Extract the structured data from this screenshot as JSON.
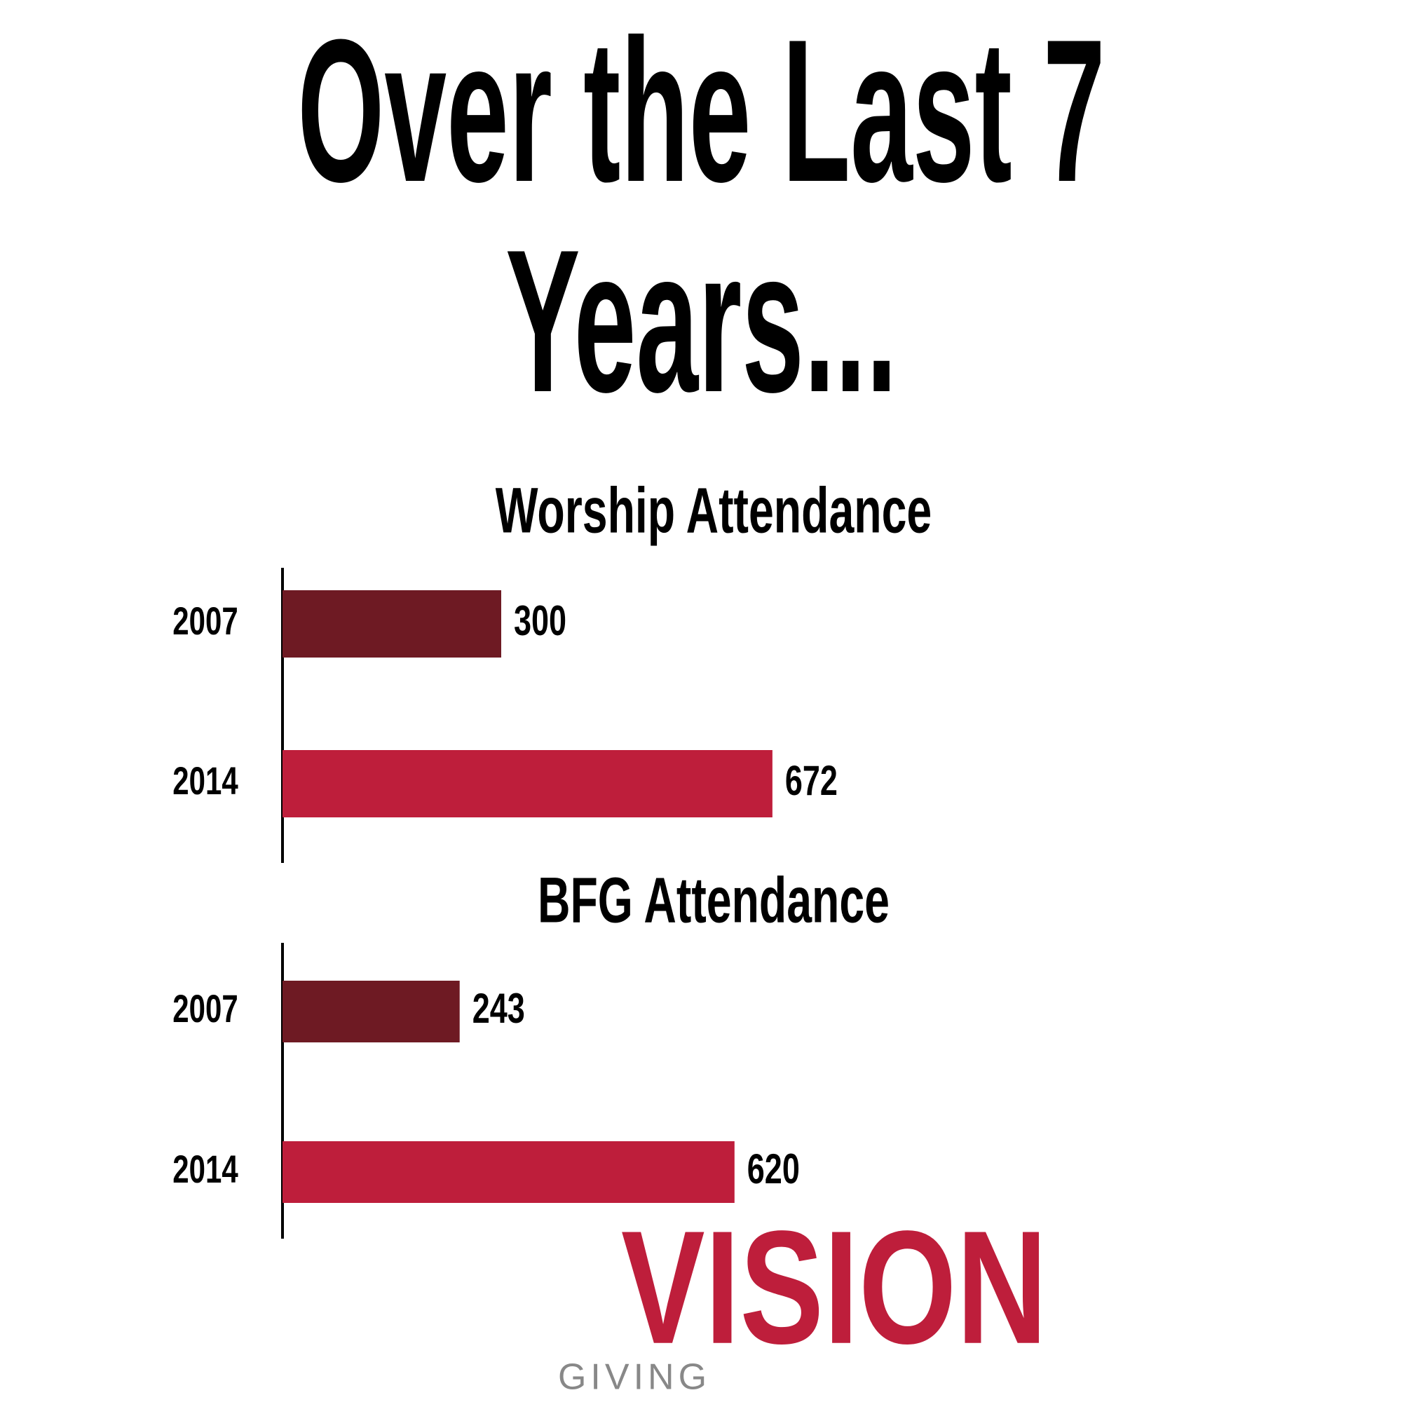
{
  "title": "Over the Last 7 Years...",
  "chart_data": [
    {
      "type": "bar",
      "orientation": "horizontal",
      "title": "Worship Attendance",
      "categories": [
        "2007",
        "2014"
      ],
      "values": [
        300,
        672
      ],
      "colors": [
        "#6e1a23",
        "#be1e3b"
      ]
    },
    {
      "type": "bar",
      "orientation": "horizontal",
      "title": "BFG Attendance",
      "categories": [
        "2007",
        "2014"
      ],
      "values": [
        243,
        620
      ],
      "colors": [
        "#6e1a23",
        "#be1e3b"
      ]
    }
  ],
  "logo": {
    "text": "VISION",
    "tagline": "GIVING"
  }
}
